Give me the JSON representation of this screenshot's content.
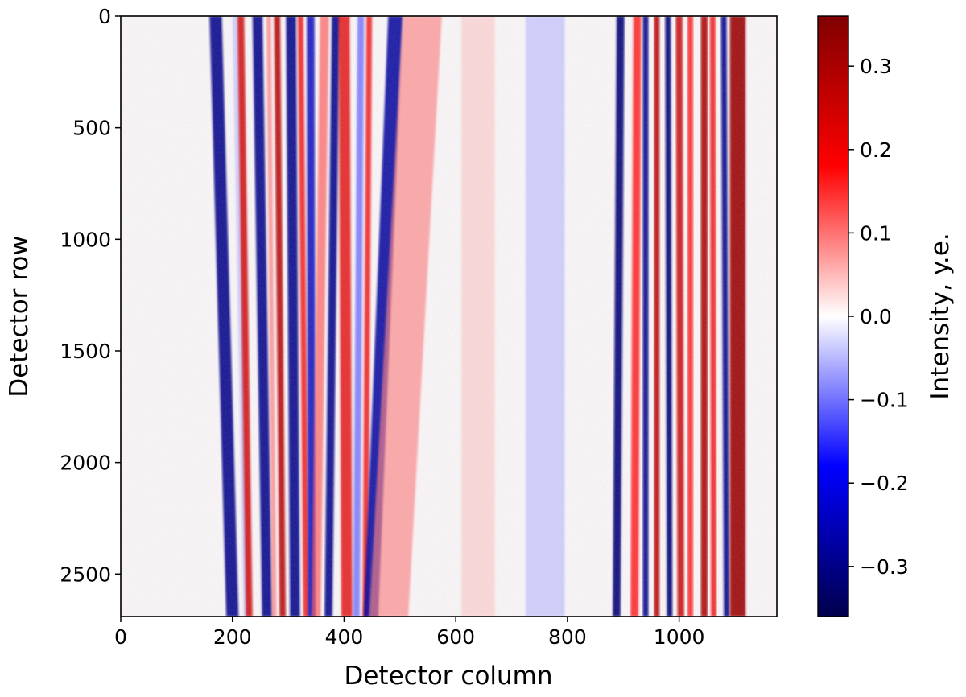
{
  "chart_data": {
    "type": "heatmap",
    "title": "",
    "xlabel": "Detector column",
    "ylabel": "Detector row",
    "colorbar_label": "Intensity, y.e.",
    "colormap": "seismic",
    "colormap_stops": [
      "#00004c",
      "#0000ff",
      "#ffffff",
      "#ff0000",
      "#800000"
    ],
    "xlim": [
      0,
      1175
    ],
    "ylim": [
      0,
      2690
    ],
    "y_inverted": true,
    "clim": [
      -0.36,
      0.36
    ],
    "x_ticks": [
      0,
      200,
      400,
      600,
      800,
      1000
    ],
    "x_tick_labels": [
      "0",
      "200",
      "400",
      "600",
      "800",
      "1000"
    ],
    "y_ticks": [
      0,
      500,
      1000,
      1500,
      2000,
      2500
    ],
    "y_tick_labels": [
      "0",
      "500",
      "1000",
      "1500",
      "2000",
      "2500"
    ],
    "colorbar_ticks": [
      -0.3,
      -0.2,
      -0.1,
      0.0,
      0.1,
      0.2,
      0.3
    ],
    "colorbar_tick_labels": [
      "−0.3",
      "−0.2",
      "−0.1",
      "0.0",
      "0.1",
      "0.2",
      "0.3"
    ],
    "stripes": [
      {
        "x_top": 170,
        "x_bottom": 200,
        "width": 22,
        "value": -0.3
      },
      {
        "x_top": 205,
        "x_bottom": 225,
        "width": 10,
        "value": -0.05
      },
      {
        "x_top": 215,
        "x_bottom": 230,
        "width": 12,
        "value": 0.25
      },
      {
        "x_top": 245,
        "x_bottom": 262,
        "width": 18,
        "value": -0.3
      },
      {
        "x_top": 265,
        "x_bottom": 275,
        "width": 8,
        "value": 0.1
      },
      {
        "x_top": 280,
        "x_bottom": 290,
        "width": 11,
        "value": 0.28
      },
      {
        "x_top": 305,
        "x_bottom": 312,
        "width": 18,
        "value": -0.3
      },
      {
        "x_top": 322,
        "x_bottom": 332,
        "width": 10,
        "value": 0.2
      },
      {
        "x_top": 340,
        "x_bottom": 342,
        "width": 14,
        "value": -0.25
      },
      {
        "x_top": 365,
        "x_bottom": 350,
        "width": 16,
        "value": 0.12
      },
      {
        "x_top": 385,
        "x_bottom": 372,
        "width": 14,
        "value": -0.3
      },
      {
        "x_top": 400,
        "x_bottom": 405,
        "width": 20,
        "value": 0.22
      },
      {
        "x_top": 430,
        "x_bottom": 422,
        "width": 12,
        "value": -0.12
      },
      {
        "x_top": 445,
        "x_bottom": 438,
        "width": 10,
        "value": 0.2
      },
      {
        "x_top": 492,
        "x_bottom": 448,
        "width": 26,
        "value": -0.28
      },
      {
        "x_top": 540,
        "x_bottom": 480,
        "width": 70,
        "value": 0.09
      },
      {
        "x_top": 640,
        "x_bottom": 640,
        "width": 60,
        "value": 0.04
      },
      {
        "x_top": 760,
        "x_bottom": 760,
        "width": 70,
        "value": -0.05
      },
      {
        "x_top": 895,
        "x_bottom": 888,
        "width": 14,
        "value": -0.32
      },
      {
        "x_top": 925,
        "x_bottom": 920,
        "width": 14,
        "value": 0.18
      },
      {
        "x_top": 940,
        "x_bottom": 940,
        "width": 10,
        "value": -0.3
      },
      {
        "x_top": 960,
        "x_bottom": 960,
        "width": 10,
        "value": 0.28
      },
      {
        "x_top": 980,
        "x_bottom": 983,
        "width": 10,
        "value": -0.32
      },
      {
        "x_top": 1000,
        "x_bottom": 1003,
        "width": 12,
        "value": 0.26
      },
      {
        "x_top": 1020,
        "x_bottom": 1020,
        "width": 10,
        "value": 0.18
      },
      {
        "x_top": 1045,
        "x_bottom": 1045,
        "width": 12,
        "value": 0.3
      },
      {
        "x_top": 1060,
        "x_bottom": 1062,
        "width": 10,
        "value": 0.2
      },
      {
        "x_top": 1080,
        "x_bottom": 1085,
        "width": 10,
        "value": -0.3
      },
      {
        "x_top": 1105,
        "x_bottom": 1105,
        "width": 28,
        "value": 0.32
      }
    ]
  }
}
